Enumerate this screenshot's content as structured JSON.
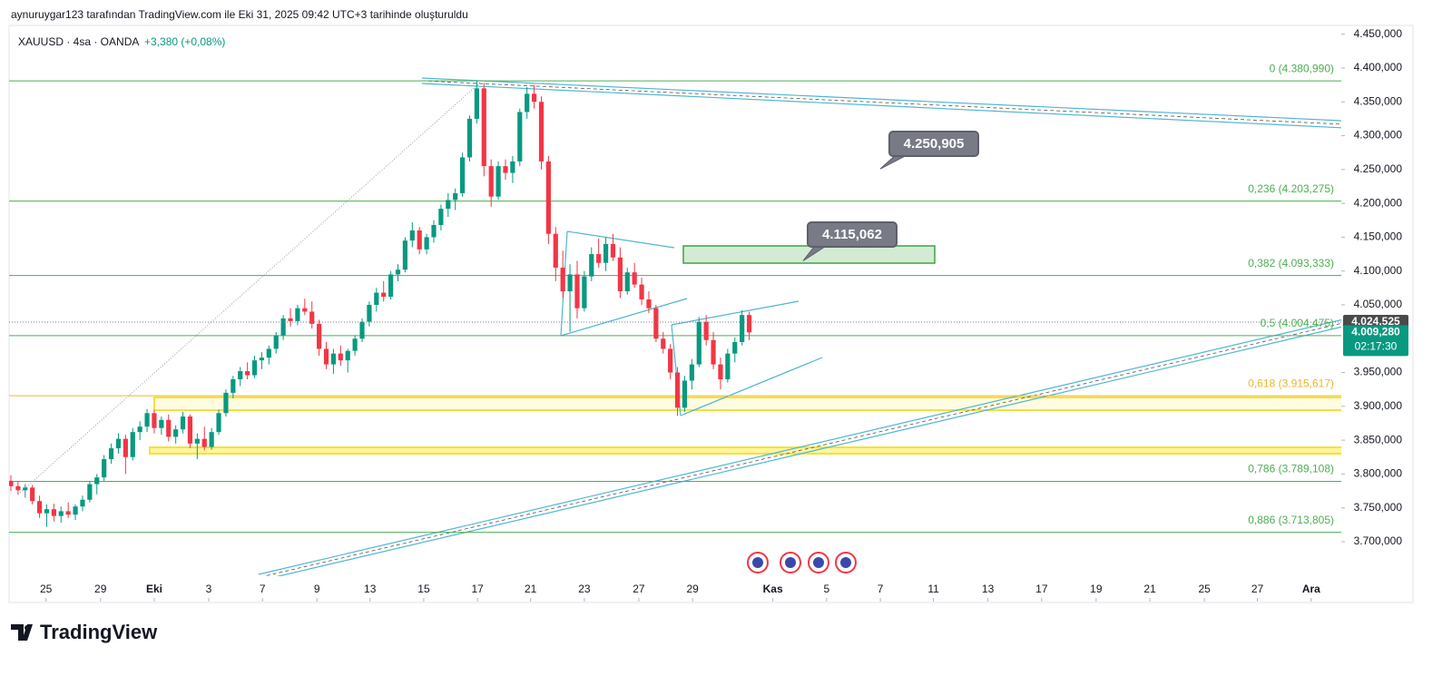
{
  "header": {
    "attribution": "aynuruygar123 tarafından TradingView.com ile Eki 31, 2025 09:42 UTC+3 tarihinde oluşturuldu",
    "symbol": "XAUUSD · 4sa · OANDA",
    "change": "+3,380 (+0,08%)"
  },
  "chart_data": {
    "type": "candlestick",
    "up_color": "#089981",
    "down_color": "#f23645",
    "ohlc": [
      [
        3790,
        3798,
        3775,
        3782
      ],
      [
        3782,
        3790,
        3770,
        3776
      ],
      [
        3776,
        3785,
        3765,
        3780
      ],
      [
        3780,
        3784,
        3755,
        3760
      ],
      [
        3760,
        3768,
        3735,
        3742
      ],
      [
        3742,
        3755,
        3722,
        3748
      ],
      [
        3748,
        3756,
        3730,
        3738
      ],
      [
        3738,
        3752,
        3728,
        3745
      ],
      [
        3745,
        3758,
        3735,
        3740
      ],
      [
        3740,
        3755,
        3732,
        3752
      ],
      [
        3752,
        3768,
        3745,
        3762
      ],
      [
        3762,
        3790,
        3758,
        3785
      ],
      [
        3785,
        3800,
        3770,
        3795
      ],
      [
        3795,
        3828,
        3790,
        3822
      ],
      [
        3822,
        3845,
        3815,
        3838
      ],
      [
        3838,
        3860,
        3830,
        3852
      ],
      [
        3852,
        3858,
        3800,
        3825
      ],
      [
        3825,
        3868,
        3820,
        3862
      ],
      [
        3862,
        3878,
        3850,
        3870
      ],
      [
        3870,
        3896,
        3862,
        3890
      ],
      [
        3890,
        3895,
        3860,
        3868
      ],
      [
        3868,
        3885,
        3858,
        3880
      ],
      [
        3880,
        3888,
        3848,
        3855
      ],
      [
        3855,
        3872,
        3845,
        3866
      ],
      [
        3866,
        3892,
        3860,
        3885
      ],
      [
        3885,
        3888,
        3838,
        3845
      ],
      [
        3845,
        3860,
        3822,
        3852
      ],
      [
        3852,
        3870,
        3835,
        3840
      ],
      [
        3840,
        3868,
        3836,
        3862
      ],
      [
        3862,
        3895,
        3858,
        3890
      ],
      [
        3890,
        3925,
        3885,
        3920
      ],
      [
        3920,
        3945,
        3912,
        3940
      ],
      [
        3940,
        3958,
        3930,
        3952
      ],
      [
        3952,
        3965,
        3940,
        3946
      ],
      [
        3946,
        3975,
        3942,
        3968
      ],
      [
        3968,
        3980,
        3955,
        3972
      ],
      [
        3972,
        3990,
        3962,
        3985
      ],
      [
        3985,
        4010,
        3978,
        4005
      ],
      [
        4005,
        4035,
        3998,
        4030
      ],
      [
        4030,
        4045,
        4018,
        4026
      ],
      [
        4026,
        4050,
        4020,
        4045
      ],
      [
        4045,
        4059,
        4035,
        4040
      ],
      [
        4040,
        4055,
        4015,
        4022
      ],
      [
        4022,
        4028,
        3975,
        3985
      ],
      [
        3985,
        3995,
        3955,
        3962
      ],
      [
        3962,
        3985,
        3948,
        3978
      ],
      [
        3978,
        3990,
        3960,
        3968
      ],
      [
        3968,
        3985,
        3950,
        3982
      ],
      [
        3982,
        4005,
        3975,
        4000
      ],
      [
        4000,
        4030,
        3995,
        4025
      ],
      [
        4025,
        4055,
        4018,
        4050
      ],
      [
        4050,
        4075,
        4040,
        4068
      ],
      [
        4068,
        4085,
        4055,
        4062
      ],
      [
        4062,
        4100,
        4058,
        4095
      ],
      [
        4095,
        4110,
        4085,
        4102
      ],
      [
        4102,
        4150,
        4098,
        4145
      ],
      [
        4145,
        4172,
        4135,
        4160
      ],
      [
        4160,
        4165,
        4125,
        4132
      ],
      [
        4132,
        4155,
        4125,
        4150
      ],
      [
        4150,
        4175,
        4142,
        4168
      ],
      [
        4168,
        4198,
        4160,
        4192
      ],
      [
        4192,
        4215,
        4180,
        4205
      ],
      [
        4205,
        4222,
        4190,
        4215
      ],
      [
        4215,
        4275,
        4210,
        4268
      ],
      [
        4268,
        4330,
        4262,
        4325
      ],
      [
        4325,
        4381,
        4318,
        4370
      ],
      [
        4370,
        4378,
        4240,
        4255
      ],
      [
        4255,
        4265,
        4195,
        4210
      ],
      [
        4210,
        4262,
        4205,
        4255
      ],
      [
        4255,
        4265,
        4235,
        4245
      ],
      [
        4245,
        4270,
        4230,
        4262
      ],
      [
        4262,
        4340,
        4255,
        4335
      ],
      [
        4335,
        4372,
        4325,
        4362
      ],
      [
        4362,
        4375,
        4340,
        4350
      ],
      [
        4350,
        4358,
        4250,
        4262
      ],
      [
        4262,
        4270,
        4140,
        4155
      ],
      [
        4155,
        4165,
        4085,
        4105
      ],
      [
        4105,
        4130,
        4060,
        4070
      ],
      [
        4070,
        4110,
        4010,
        4095
      ],
      [
        4095,
        4115,
        4030,
        4045
      ],
      [
        4045,
        4100,
        4040,
        4092
      ],
      [
        4092,
        4135,
        4085,
        4125
      ],
      [
        4125,
        4148,
        4105,
        4112
      ],
      [
        4112,
        4150,
        4100,
        4140
      ],
      [
        4140,
        4155,
        4115,
        4120
      ],
      [
        4120,
        4135,
        4060,
        4070
      ],
      [
        4070,
        4105,
        4065,
        4098
      ],
      [
        4098,
        4112,
        4075,
        4080
      ],
      [
        4080,
        4090,
        4050,
        4058
      ],
      [
        4058,
        4070,
        4038,
        4045
      ],
      [
        4045,
        4050,
        3995,
        4000
      ],
      [
        4000,
        4010,
        3978,
        3985
      ],
      [
        3985,
        3992,
        3940,
        3950
      ],
      [
        3950,
        3958,
        3886,
        3898
      ],
      [
        3898,
        3945,
        3892,
        3938
      ],
      [
        3938,
        3970,
        3925,
        3962
      ],
      [
        3962,
        4032,
        3958,
        4025
      ],
      [
        4025,
        4035,
        3990,
        3998
      ],
      [
        3998,
        4010,
        3955,
        3962
      ],
      [
        3962,
        3972,
        3925,
        3940
      ],
      [
        3940,
        3985,
        3935,
        3978
      ],
      [
        3978,
        4002,
        3965,
        3995
      ],
      [
        3995,
        4042,
        3990,
        4035
      ],
      [
        4035,
        4040,
        3998,
        4009.28
      ]
    ],
    "xlim": [
      -0.25,
      185.6
    ],
    "xticks": [
      {
        "value": 4.9,
        "label": "25"
      },
      {
        "value": 12.5,
        "label": "29"
      },
      {
        "value": 20,
        "label": "Eki"
      },
      {
        "value": 27.6,
        "label": "3"
      },
      {
        "value": 35.1,
        "label": "7"
      },
      {
        "value": 42.7,
        "label": "9"
      },
      {
        "value": 50.1,
        "label": "13"
      },
      {
        "value": 57.6,
        "label": "15"
      },
      {
        "value": 65.1,
        "label": "17"
      },
      {
        "value": 72.5,
        "label": "21"
      },
      {
        "value": 80,
        "label": "23"
      },
      {
        "value": 87.6,
        "label": "27"
      },
      {
        "value": 95.1,
        "label": "29"
      },
      {
        "value": 106.3,
        "label": "Kas"
      },
      {
        "value": 113.8,
        "label": "5"
      },
      {
        "value": 121.3,
        "label": "7"
      },
      {
        "value": 128.7,
        "label": "11"
      },
      {
        "value": 136.3,
        "label": "13"
      },
      {
        "value": 143.8,
        "label": "17"
      },
      {
        "value": 151.4,
        "label": "19"
      },
      {
        "value": 158.9,
        "label": "21"
      },
      {
        "value": 166.5,
        "label": "25"
      },
      {
        "value": 173.9,
        "label": "27"
      },
      {
        "value": 181.4,
        "label": "Ara"
      }
    ],
    "ylim": [
      3649,
      4463
    ],
    "yticks": [
      {
        "value": 4450,
        "label": "4.450,000"
      },
      {
        "value": 4400,
        "label": "4.400,000"
      },
      {
        "value": 4350,
        "label": "4.350,000"
      },
      {
        "value": 4300,
        "label": "4.300,000"
      },
      {
        "value": 4250,
        "label": "4.250,000"
      },
      {
        "value": 4200,
        "label": "4.200,000"
      },
      {
        "value": 4150,
        "label": "4.150,000"
      },
      {
        "value": 4100,
        "label": "4.100,000"
      },
      {
        "value": 4050,
        "label": "4.050,000"
      },
      {
        "value": 3950,
        "label": "3.950,000"
      },
      {
        "value": 3900,
        "label": "3.900,000"
      },
      {
        "value": 3850,
        "label": "3.850,000"
      },
      {
        "value": 3800,
        "label": "3.800,000"
      },
      {
        "value": 3750,
        "label": "3.750,000"
      },
      {
        "value": 3700,
        "label": "3.700,000"
      }
    ],
    "levels": [
      {
        "label": "0 (4.380,990)",
        "value": 4380.99,
        "color": "#4caf50"
      },
      {
        "label": "0,236 (4.203,275)",
        "value": 4203.275,
        "color": "#4caf50"
      },
      {
        "label": "0,382 (4.093,333)",
        "value": 4093.333,
        "color": "#4caf50"
      },
      {
        "label": "0,5 (4.004,475)",
        "value": 4004.475,
        "color": "#4caf50"
      },
      {
        "label": "0,618 (3.915,617)",
        "value": 3915.617,
        "color": "#f0b429"
      },
      {
        "label": "0,786 (3.789,108)",
        "value": 3789.108,
        "color": "#4caf50"
      },
      {
        "label": "0,886 (3.713,805)",
        "value": 3713.805,
        "color": "#4caf50"
      }
    ],
    "price_tags": [
      {
        "value": 4024.525,
        "label": "4.024,525",
        "color": "#4a4a4a"
      },
      {
        "value": 4009.28,
        "label": "4.009,280",
        "timer": "02:17:30",
        "color": "#089981"
      }
    ],
    "callouts": [
      {
        "value": 4250.905,
        "label": "4.250,905"
      },
      {
        "value": 4115.062,
        "label": "4.115,062"
      }
    ]
  },
  "footer": {
    "logo": "TradingView"
  }
}
